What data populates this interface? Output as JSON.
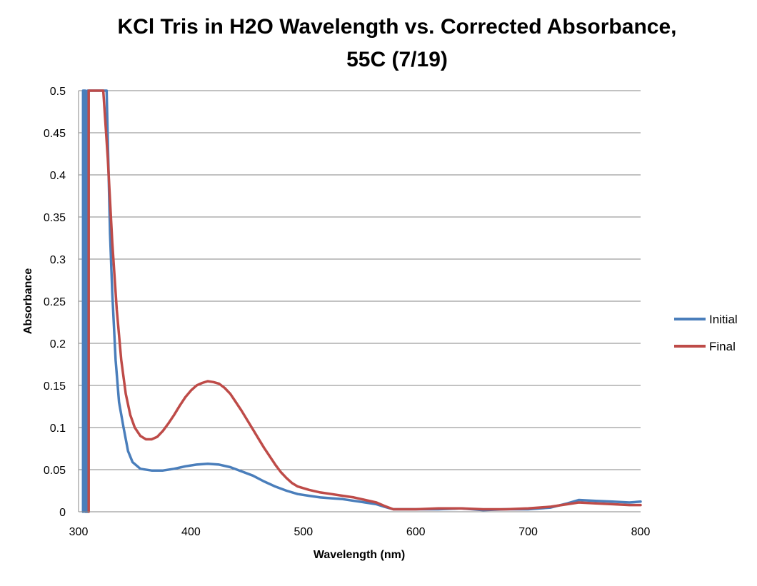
{
  "chart_data": {
    "type": "line",
    "title_line1": "KCl Tris in H2O Wavelength vs. Corrected Absorbance,",
    "title_line2": "55C (7/19)",
    "xlabel": "Wavelength (nm)",
    "ylabel": "Absorbance",
    "xlim": [
      300,
      800
    ],
    "ylim": [
      0,
      0.5
    ],
    "x_ticks": [
      "300",
      "400",
      "500",
      "600",
      "700",
      "800"
    ],
    "y_ticks": [
      "0",
      "0.05",
      "0.1",
      "0.15",
      "0.2",
      "0.25",
      "0.3",
      "0.35",
      "0.4",
      "0.45",
      "0.5"
    ],
    "grid": "horizontal",
    "legend_position": "right",
    "series": [
      {
        "name": "Initial",
        "color": "#4a7ebb",
        "points": [
          [
            304,
            0.0
          ],
          [
            304,
            0.5
          ],
          [
            306,
            0.5
          ],
          [
            306,
            0.0
          ],
          [
            308,
            0.0
          ],
          [
            308,
            0.5
          ],
          [
            325,
            0.5
          ],
          [
            328,
            0.33
          ],
          [
            330,
            0.26
          ],
          [
            333,
            0.18
          ],
          [
            336,
            0.13
          ],
          [
            340,
            0.1
          ],
          [
            344,
            0.072
          ],
          [
            348,
            0.059
          ],
          [
            355,
            0.051
          ],
          [
            365,
            0.049
          ],
          [
            375,
            0.049
          ],
          [
            385,
            0.051
          ],
          [
            395,
            0.054
          ],
          [
            405,
            0.056
          ],
          [
            415,
            0.057
          ],
          [
            425,
            0.056
          ],
          [
            435,
            0.053
          ],
          [
            445,
            0.048
          ],
          [
            455,
            0.043
          ],
          [
            465,
            0.036
          ],
          [
            475,
            0.03
          ],
          [
            485,
            0.025
          ],
          [
            495,
            0.021
          ],
          [
            505,
            0.019
          ],
          [
            515,
            0.017
          ],
          [
            525,
            0.016
          ],
          [
            535,
            0.015
          ],
          [
            545,
            0.013
          ],
          [
            555,
            0.011
          ],
          [
            565,
            0.009
          ],
          [
            572,
            0.006
          ],
          [
            580,
            0.003
          ],
          [
            600,
            0.003
          ],
          [
            620,
            0.003
          ],
          [
            640,
            0.004
          ],
          [
            660,
            0.002
          ],
          [
            680,
            0.003
          ],
          [
            700,
            0.003
          ],
          [
            720,
            0.005
          ],
          [
            735,
            0.01
          ],
          [
            745,
            0.014
          ],
          [
            760,
            0.013
          ],
          [
            775,
            0.012
          ],
          [
            790,
            0.011
          ],
          [
            800,
            0.012
          ]
        ]
      },
      {
        "name": "Final",
        "color": "#be4b48",
        "points": [
          [
            309,
            0.0
          ],
          [
            309,
            0.5
          ],
          [
            322,
            0.5
          ],
          [
            326,
            0.42
          ],
          [
            330,
            0.32
          ],
          [
            334,
            0.24
          ],
          [
            338,
            0.18
          ],
          [
            342,
            0.14
          ],
          [
            346,
            0.115
          ],
          [
            350,
            0.1
          ],
          [
            355,
            0.09
          ],
          [
            360,
            0.086
          ],
          [
            365,
            0.086
          ],
          [
            370,
            0.089
          ],
          [
            375,
            0.096
          ],
          [
            380,
            0.105
          ],
          [
            385,
            0.115
          ],
          [
            390,
            0.126
          ],
          [
            395,
            0.136
          ],
          [
            400,
            0.144
          ],
          [
            405,
            0.15
          ],
          [
            410,
            0.153
          ],
          [
            415,
            0.155
          ],
          [
            420,
            0.154
          ],
          [
            425,
            0.152
          ],
          [
            430,
            0.147
          ],
          [
            435,
            0.14
          ],
          [
            440,
            0.13
          ],
          [
            445,
            0.12
          ],
          [
            450,
            0.109
          ],
          [
            455,
            0.098
          ],
          [
            460,
            0.087
          ],
          [
            465,
            0.076
          ],
          [
            470,
            0.066
          ],
          [
            475,
            0.056
          ],
          [
            480,
            0.047
          ],
          [
            485,
            0.04
          ],
          [
            490,
            0.034
          ],
          [
            495,
            0.03
          ],
          [
            505,
            0.026
          ],
          [
            515,
            0.023
          ],
          [
            525,
            0.021
          ],
          [
            535,
            0.019
          ],
          [
            545,
            0.017
          ],
          [
            555,
            0.014
          ],
          [
            565,
            0.011
          ],
          [
            572,
            0.007
          ],
          [
            580,
            0.003
          ],
          [
            600,
            0.003
          ],
          [
            620,
            0.004
          ],
          [
            640,
            0.004
          ],
          [
            660,
            0.003
          ],
          [
            680,
            0.003
          ],
          [
            700,
            0.004
          ],
          [
            720,
            0.006
          ],
          [
            735,
            0.009
          ],
          [
            745,
            0.011
          ],
          [
            760,
            0.01
          ],
          [
            775,
            0.009
          ],
          [
            790,
            0.008
          ],
          [
            800,
            0.008
          ]
        ]
      }
    ]
  }
}
